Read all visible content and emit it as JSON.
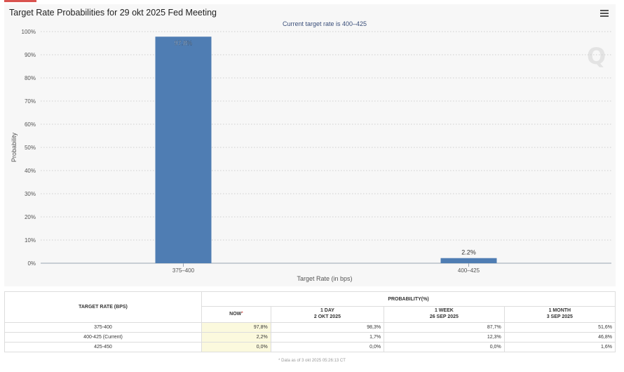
{
  "header": {
    "title": "Target Rate Probabilities for 29 okt 2025 Fed Meeting",
    "menu_icon": "hamburger-menu-icon"
  },
  "watermark": "Q",
  "chart_data": {
    "type": "bar",
    "title": "Target Rate Probabilities for 29 okt 2025 Fed Meeting",
    "subtitle": "Current target rate is 400–425",
    "xlabel": "Target Rate (in bps)",
    "ylabel": "Probability",
    "categories": [
      "375–400",
      "400–425"
    ],
    "values": [
      97.8,
      2.2
    ],
    "data_labels": [
      "97.8%",
      "2.2%"
    ],
    "ylim": [
      0,
      100
    ],
    "yticks": [
      0,
      10,
      20,
      30,
      40,
      50,
      60,
      70,
      80,
      90,
      100
    ],
    "ytick_labels": [
      "0%",
      "10%",
      "20%",
      "30%",
      "40%",
      "50%",
      "60%",
      "70%",
      "80%",
      "90%",
      "100%"
    ],
    "grid": true,
    "legend": "none",
    "colors": {
      "bar": "#4f7db3",
      "grid": "#cfcfcf",
      "axis": "#9aa4b2"
    }
  },
  "table": {
    "col_rate": "TARGET RATE (BPS)",
    "col_prob": "PROBABILITY(%)",
    "cols": [
      {
        "line1": "NOW",
        "line2": "",
        "asterisk": "*"
      },
      {
        "line1": "1 DAY",
        "line2": "2 OKT 2025",
        "asterisk": ""
      },
      {
        "line1": "1 WEEK",
        "line2": "26 SEP 2025",
        "asterisk": ""
      },
      {
        "line1": "1 MONTH",
        "line2": "3 SEP 2025",
        "asterisk": ""
      }
    ],
    "rows": [
      {
        "rate": "375-400",
        "values": [
          "97,8%",
          "98,3%",
          "87,7%",
          "51,6%"
        ]
      },
      {
        "rate": "400-425 (Current)",
        "values": [
          "2,2%",
          "1,7%",
          "12,3%",
          "46,8%"
        ]
      },
      {
        "rate": "425-450",
        "values": [
          "0,0%",
          "0,0%",
          "0,0%",
          "1,6%"
        ]
      }
    ],
    "footnote": "* Data as of 3 okt 2025 05:26:13 CT"
  }
}
